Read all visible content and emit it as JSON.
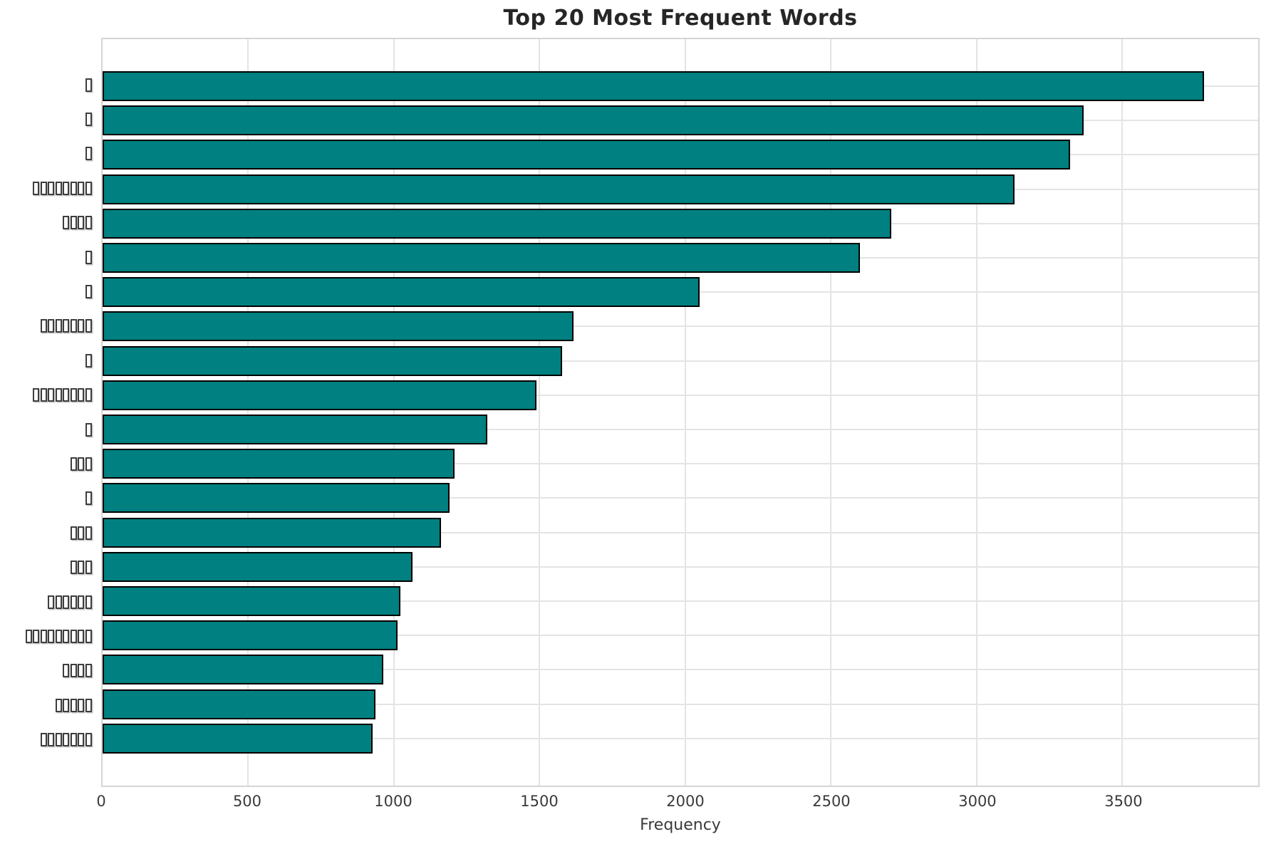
{
  "chart_data": {
    "type": "bar",
    "orientation": "horizontal",
    "title": "Top 20 Most Frequent Words",
    "xlabel": "Frequency",
    "ylabel": "",
    "categories": [
      "□",
      "□",
      "□",
      "□□□□□□□□",
      "□□□□",
      "□",
      "□",
      "□□□□□□□",
      "□",
      "□□□□□□□□",
      "□",
      "□□□",
      "□",
      "□□□",
      "□□□",
      "□□□□□□",
      "□□□□□□□□□",
      "□□□□",
      "□□□□□",
      "□□□□□□□"
    ],
    "category_note": "y-axis word labels are rendered as missing-glyph (tofu) boxes in the source image",
    "values": [
      3780,
      3366,
      3320,
      3129,
      2707,
      2598,
      2049,
      1617,
      1578,
      1488,
      1320,
      1207,
      1190,
      1161,
      1063,
      1022,
      1012,
      963,
      937,
      927
    ],
    "xticks": [
      0,
      500,
      1000,
      1500,
      2000,
      2500,
      3000,
      3500
    ],
    "xlim": [
      0,
      3966
    ],
    "grid": true,
    "legend": false,
    "bar_color": "#008080",
    "bar_edge_color": "#000000",
    "grid_color": "#e4e4e4",
    "spine_color": "#d5d5d5",
    "text_color": "#3a3a3a",
    "title_color": "#262626"
  }
}
